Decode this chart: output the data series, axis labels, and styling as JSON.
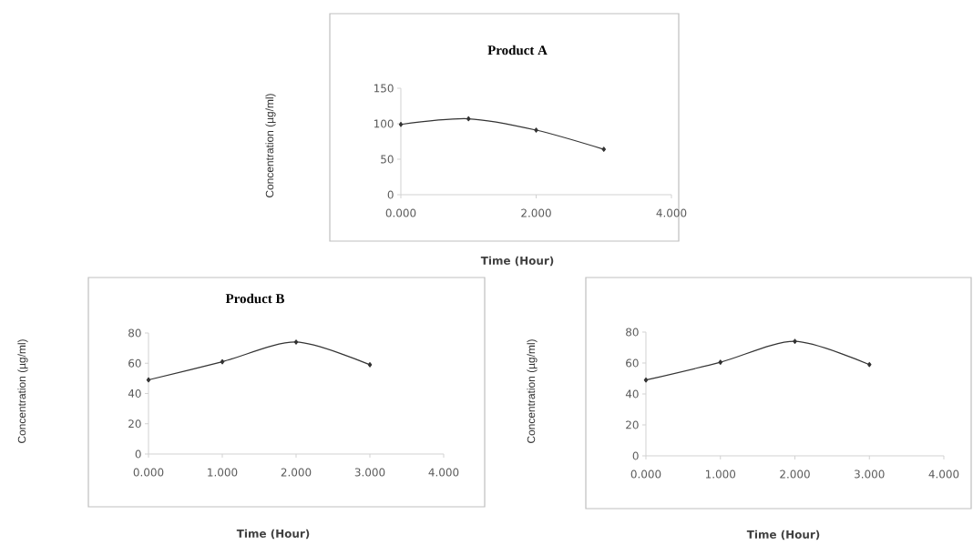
{
  "chart_data": [
    {
      "type": "line",
      "title": "Product A",
      "xlabel": "Time  (Hour)",
      "ylabel": "Concentration (µg/ml)",
      "x": [
        0,
        1,
        2,
        3
      ],
      "values": [
        99,
        107,
        91,
        64
      ],
      "color": "#333333",
      "marker": "diamond",
      "xlim": [
        0,
        4
      ],
      "ylim": [
        0,
        150
      ],
      "xticks": [
        {
          "value": 0,
          "label": "0.000"
        },
        {
          "value": 2,
          "label": "2.000"
        },
        {
          "value": 4,
          "label": "4.000"
        }
      ],
      "yticks": [
        0,
        50,
        100,
        150
      ]
    },
    {
      "type": "line",
      "title": "Product B",
      "xlabel": "Time  (Hour)",
      "ylabel": "Concentration (µg/ml)",
      "x": [
        0,
        1,
        2,
        3
      ],
      "values": [
        49,
        61,
        74,
        59
      ],
      "color": "#333333",
      "marker": "diamond",
      "xlim": [
        0,
        4
      ],
      "ylim": [
        0,
        80
      ],
      "xticks": [
        {
          "value": 0,
          "label": "0.000"
        },
        {
          "value": 1,
          "label": "1.000"
        },
        {
          "value": 2,
          "label": "2.000"
        },
        {
          "value": 3,
          "label": "3.000"
        },
        {
          "value": 4,
          "label": "4.000"
        }
      ],
      "yticks": [
        0,
        20,
        40,
        60,
        80
      ]
    },
    {
      "type": "line",
      "xlabel": "Time  (Hour)",
      "ylabel": "Concentration (µg/ml)",
      "x": [
        0,
        1,
        2,
        3
      ],
      "values": [
        49,
        60.5,
        74,
        59
      ],
      "color": "#333333",
      "marker": "diamond",
      "xlim": [
        0,
        4
      ],
      "ylim": [
        0,
        80
      ],
      "xticks": [
        {
          "value": 0,
          "label": "0.000"
        },
        {
          "value": 1,
          "label": "1.000"
        },
        {
          "value": 2,
          "label": "2.000"
        },
        {
          "value": 3,
          "label": "3.000"
        },
        {
          "value": 4,
          "label": "4.000"
        }
      ],
      "yticks": [
        0,
        20,
        40,
        60,
        80
      ]
    }
  ]
}
